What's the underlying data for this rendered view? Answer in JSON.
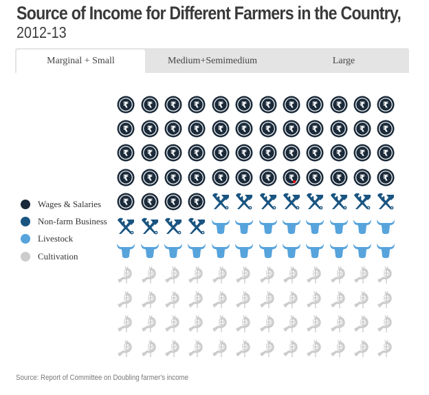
{
  "header": {
    "title": "Source of Income for Different Farmers in the Country,",
    "subtitle": "2012-13"
  },
  "tabs": [
    {
      "label": "Marginal + Small",
      "active": true
    },
    {
      "label": "Medium+Semimedium",
      "active": false
    },
    {
      "label": "Large",
      "active": false
    }
  ],
  "legend": [
    {
      "label": "Wages & Salaries",
      "color": "#1a2a3a",
      "icon": "rupee-coin-icon"
    },
    {
      "label": "Non-farm Business",
      "color": "#1a5581",
      "icon": "tools-icon"
    },
    {
      "label": "Livestock",
      "color": "#57a3dc",
      "icon": "cow-head-icon"
    },
    {
      "label": "Cultivation",
      "color": "#cccccc",
      "icon": "sickle-wheat-icon"
    }
  ],
  "footer": {
    "source": "Source: Report of Committee on Doubling farmer's income"
  },
  "chart_data": {
    "type": "waffle",
    "title": "Source of Income for Different Farmers in the Country, 2012-13",
    "selected_category": "Marginal + Small",
    "categories": [
      "Marginal + Small",
      "Medium+Semimedium",
      "Large"
    ],
    "grid": {
      "columns": 12,
      "rows": 11,
      "total_icons": 132
    },
    "series": [
      {
        "name": "Wages & Salaries",
        "icon_count": 52,
        "color": "#1a2a3a"
      },
      {
        "name": "Non-farm Business",
        "icon_count": 12,
        "color": "#1a5581"
      },
      {
        "name": "Livestock",
        "icon_count": 20,
        "color": "#57a3dc"
      },
      {
        "name": "Cultivation",
        "icon_count": 48,
        "color": "#cccccc"
      }
    ],
    "legend_position": "left",
    "source": "Source: Report of Committee on Doubling farmer's income"
  }
}
